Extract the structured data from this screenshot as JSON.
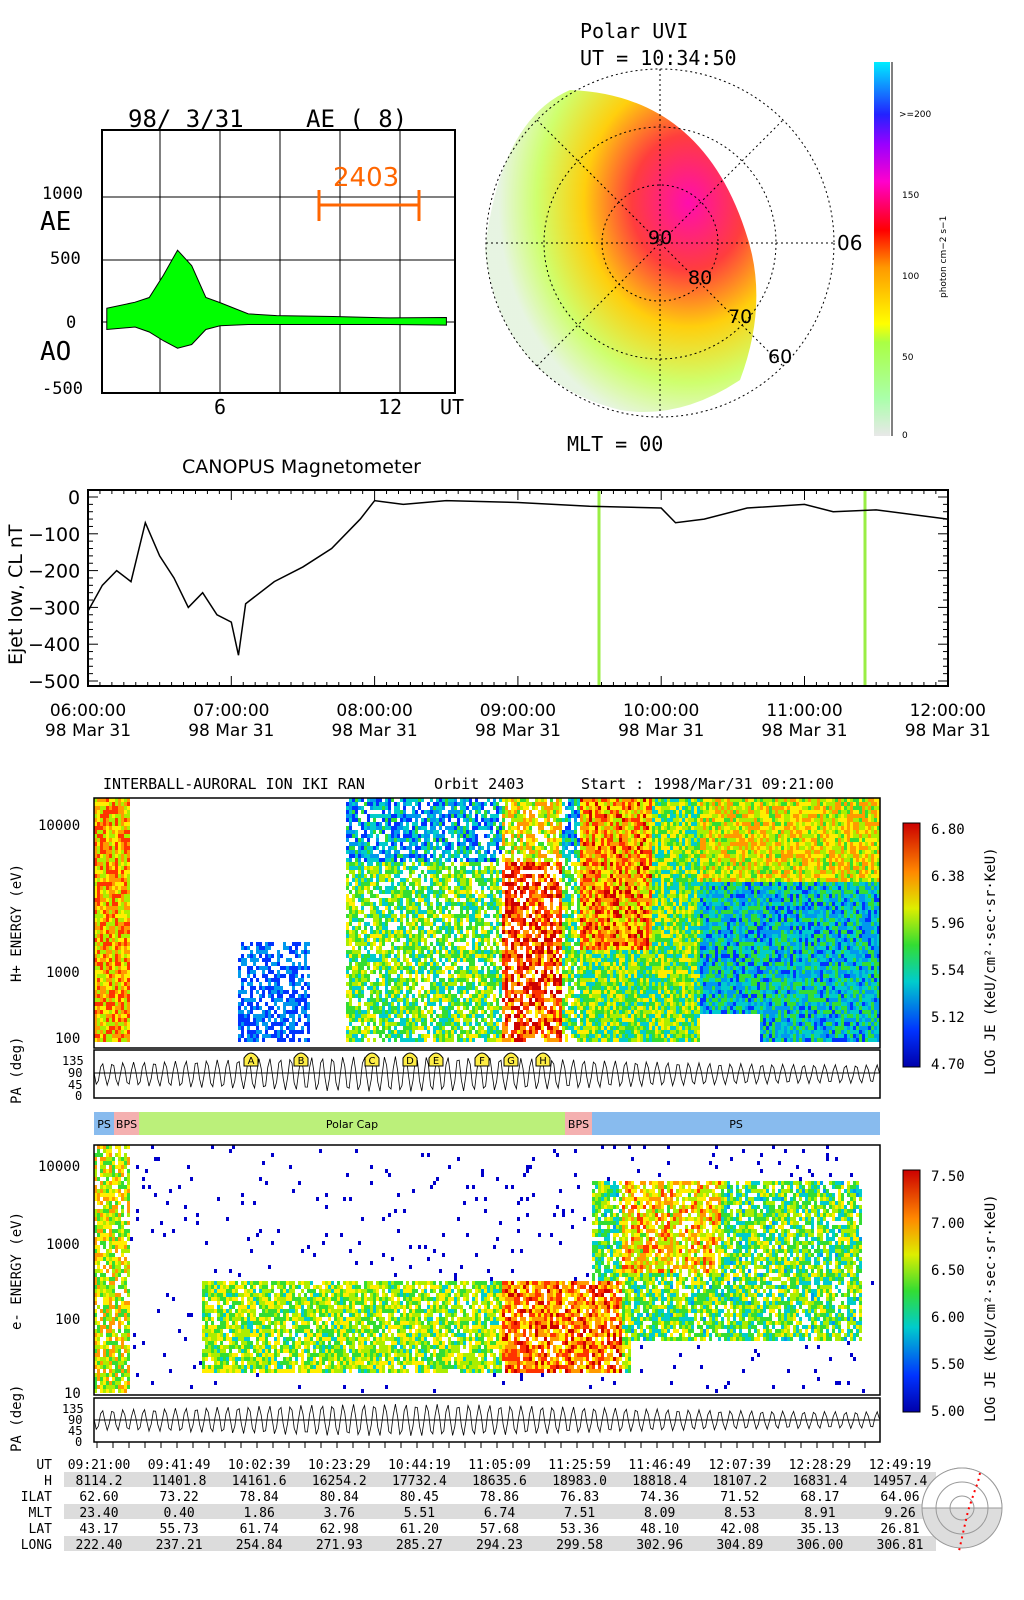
{
  "ae_panel": {
    "date": "98/ 3/31",
    "title": "AE ( 8)",
    "y_labels": [
      "1000",
      "AE",
      "500",
      "0",
      "AO",
      "-500"
    ],
    "x_labels": [
      "6",
      "12",
      "UT"
    ],
    "orbit_marker": "2403",
    "colors": {
      "fill": "#00ff00",
      "marker": "#ff6600"
    }
  },
  "uvi_panel": {
    "title": "Polar UVI",
    "ut": "UT = 10:34:50",
    "mlt": "MLT = 00",
    "lat_labels": [
      "90",
      "80",
      "70",
      "60"
    ],
    "mlt_label_06": "06",
    "colorbar_labels": [
      ">=200",
      "150",
      "100",
      "50",
      "0"
    ],
    "colorbar_unit": "photon cm−2 s−1"
  },
  "canopus_panel": {
    "title": "CANOPUS  Magnetometer",
    "ylabel": "Ejet low, CL nT",
    "y_ticks": [
      "0",
      "−100",
      "−200",
      "−300",
      "−400",
      "−500"
    ],
    "x_ticks": [
      {
        "time": "06:00:00",
        "date": "98 Mar 31"
      },
      {
        "time": "07:00:00",
        "date": "98 Mar 31"
      },
      {
        "time": "08:00:00",
        "date": "98 Mar 31"
      },
      {
        "time": "09:00:00",
        "date": "98 Mar 31"
      },
      {
        "time": "10:00:00",
        "date": "98 Mar 31"
      },
      {
        "time": "11:00:00",
        "date": "98 Mar 31"
      },
      {
        "time": "12:00:00",
        "date": "98 Mar 31"
      }
    ],
    "marker_color": "#99ee44"
  },
  "interball": {
    "instrument": "INTERBALL-AURORAL ION IKI RAN",
    "orbit": "Orbit 2403",
    "start": "Start : 1998/Mar/31  09:21:00",
    "ion": {
      "ylabel": "H+ ENERGY (eV)",
      "y_labels": [
        "10000",
        "1000",
        "100"
      ],
      "colorbar_labels": [
        "6.80",
        "6.38",
        "5.96",
        "5.54",
        "5.12",
        "4.70"
      ],
      "colorbar_title": "LOG JE (KeU/cm²·sec·sr·KeU)"
    },
    "pa": {
      "ylabel": "PA (deg)",
      "y_labels": [
        "135",
        "90",
        "45",
        "0"
      ]
    },
    "events": [
      "A",
      "B",
      "C",
      "D",
      "E",
      "F",
      "G",
      "H"
    ],
    "regions": [
      {
        "label": "PS",
        "color": "#88bbee"
      },
      {
        "label": "BPS",
        "color": "#f4b0b0"
      },
      {
        "label": "Polar Cap",
        "color": "#bbf07a"
      },
      {
        "label": "BPS",
        "color": "#f4b0b0"
      },
      {
        "label": "PS",
        "color": "#88bbee"
      }
    ],
    "electron": {
      "ylabel": "e- ENERGY (eV)",
      "y_labels": [
        "10000",
        "1000",
        "100",
        "10"
      ],
      "colorbar_labels": [
        "7.50",
        "7.00",
        "6.50",
        "6.00",
        "5.50",
        "5.00"
      ],
      "colorbar_title": "LOG JE (KeU/cm²·sec·sr·KeU)"
    },
    "table": {
      "rows": [
        {
          "label": "UT",
          "values": [
            "09:21:00",
            "09:41:49",
            "10:02:39",
            "10:23:29",
            "10:44:19",
            "11:05:09",
            "11:25:59",
            "11:46:49",
            "12:07:39",
            "12:28:29",
            "12:49:19"
          ]
        },
        {
          "label": "H",
          "values": [
            "8114.2",
            "11401.8",
            "14161.6",
            "16254.2",
            "17732.4",
            "18635.6",
            "18983.0",
            "18818.4",
            "18107.2",
            "16831.4",
            "14957.4"
          ]
        },
        {
          "label": "ILAT",
          "values": [
            "62.60",
            "73.22",
            "78.84",
            "80.84",
            "80.45",
            "78.86",
            "76.83",
            "74.36",
            "71.52",
            "68.17",
            "64.06"
          ]
        },
        {
          "label": "MLT",
          "values": [
            "23.40",
            "0.40",
            "1.86",
            "3.76",
            "5.51",
            "6.74",
            "7.51",
            "8.09",
            "8.53",
            "8.91",
            "9.26"
          ]
        },
        {
          "label": "LAT",
          "values": [
            "43.17",
            "55.73",
            "61.74",
            "62.98",
            "61.20",
            "57.68",
            "53.36",
            "48.10",
            "42.08",
            "35.13",
            "26.81"
          ]
        },
        {
          "label": "LONG",
          "values": [
            "222.40",
            "237.21",
            "254.84",
            "271.93",
            "285.27",
            "294.23",
            "299.58",
            "302.96",
            "304.89",
            "306.00",
            "306.81"
          ]
        }
      ]
    }
  },
  "chart_data": [
    {
      "type": "area",
      "title": "AE ( 8)",
      "xlabel": "UT",
      "x_ticks": [
        6,
        12
      ],
      "ylim": [
        -500,
        1500
      ],
      "series": [
        {
          "name": "AE",
          "x": [
            2,
            3,
            3.5,
            4,
            4.5,
            5,
            5.5,
            6,
            7,
            8,
            10,
            12,
            14
          ],
          "values": [
            120,
            150,
            200,
            380,
            570,
            450,
            200,
            150,
            60,
            50,
            40,
            30,
            30
          ]
        },
        {
          "name": "AO",
          "x": [
            2,
            3,
            3.5,
            4,
            4.5,
            5,
            5.5,
            6,
            7,
            8,
            10,
            12,
            14
          ],
          "values": [
            -60,
            -40,
            -80,
            -150,
            -210,
            -180,
            -60,
            -30,
            -20,
            -20,
            -20,
            -20,
            -25
          ]
        }
      ]
    },
    {
      "type": "line",
      "title": "CANOPUS  Magnetometer",
      "ylabel": "Ejet low, CL nT",
      "ylim": [
        -500,
        0
      ],
      "x_hours_ut": [
        6.0,
        6.1,
        6.2,
        6.3,
        6.4,
        6.5,
        6.6,
        6.7,
        6.8,
        6.9,
        7.0,
        7.05,
        7.1,
        7.3,
        7.5,
        7.7,
        7.9,
        8.0,
        8.2,
        8.5,
        9.0,
        9.5,
        10.0,
        10.1,
        10.3,
        10.6,
        11.0,
        11.2,
        11.5,
        12.0
      ],
      "values": [
        -310,
        -240,
        -200,
        -230,
        -70,
        -160,
        -220,
        -300,
        -260,
        -320,
        -340,
        -430,
        -290,
        -230,
        -190,
        -140,
        -60,
        -10,
        -20,
        -10,
        -15,
        -25,
        -30,
        -70,
        -60,
        -30,
        -20,
        -40,
        -35,
        -60
      ],
      "markers_hours_ut": [
        9.62,
        11.4
      ]
    }
  ]
}
